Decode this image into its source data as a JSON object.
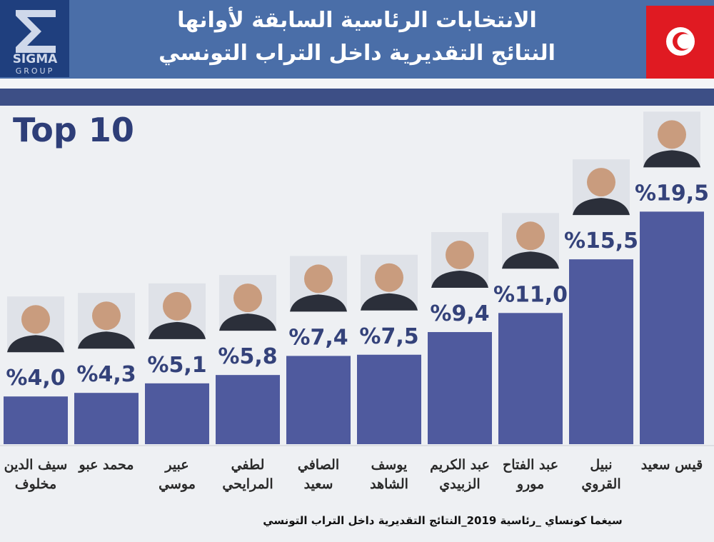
{
  "logo": {
    "name": "SIGMA",
    "sub": "GROUP"
  },
  "chart_data": {
    "type": "bar",
    "title": "الانتخابات الرئاسية السابقة لأوانها",
    "subtitle": "النتائج التقديرية داخل التراب التونسي",
    "label": "Top 10",
    "categories": [
      "سيف الدين\nمخلوف",
      "محمد عبو",
      "عبير\nموسي",
      "لطفي\nالمرايحي",
      "الصافي\nسعيد",
      "يوسف\nالشاهد",
      "عبد الكريم\nالزبيدي",
      "عبد الفتاح\nمورو",
      "نبيل\nالقروي",
      "قيس سعيد"
    ],
    "values": [
      4.0,
      4.3,
      5.1,
      5.8,
      7.4,
      7.5,
      9.4,
      11.0,
      15.5,
      19.5
    ],
    "value_labels": [
      "%4,0",
      "%4,3",
      "%5,1",
      "%5,8",
      "%7,4",
      "%7,5",
      "%9,4",
      "%11,0",
      "%15,5",
      "%19,5"
    ],
    "color": "#4f5a9e",
    "source": "سيغما كونساي _رئاسية 2019_النتائج التقديرية داخل التراب التونسي"
  }
}
